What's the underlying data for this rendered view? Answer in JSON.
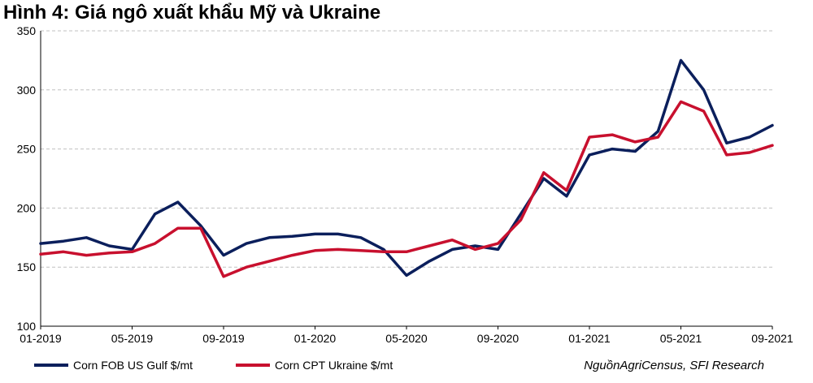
{
  "title": "Hình 4: Giá ngô xuất khẩu Mỹ và Ukraine",
  "source": "NguồnAgriCensus, SFI Research",
  "colors": {
    "us": "#0b1f5c",
    "ukraine": "#c8102e",
    "grid": "#c0c0c0"
  },
  "chart_data": {
    "type": "line",
    "title": "Hình 4: Giá ngô xuất khẩu Mỹ và Ukraine",
    "xlabel": "",
    "ylabel": "",
    "ylim": [
      100,
      350
    ],
    "yticks": [
      100,
      150,
      200,
      250,
      300,
      350
    ],
    "grid": "horizontal dashed",
    "legend_position": "bottom-left",
    "xticks": [
      "01-2019",
      "05-2019",
      "09-2019",
      "01-2020",
      "05-2020",
      "09-2020",
      "01-2021",
      "05-2021",
      "09-2021"
    ],
    "x": [
      "01-2019",
      "02-2019",
      "03-2019",
      "04-2019",
      "05-2019",
      "06-2019",
      "07-2019",
      "08-2019",
      "09-2019",
      "10-2019",
      "11-2019",
      "12-2019",
      "01-2020",
      "02-2020",
      "03-2020",
      "04-2020",
      "05-2020",
      "06-2020",
      "07-2020",
      "08-2020",
      "09-2020",
      "10-2020",
      "11-2020",
      "12-2020",
      "01-2021",
      "02-2021",
      "03-2021",
      "04-2021",
      "05-2021",
      "06-2021",
      "07-2021",
      "08-2021",
      "09-2021"
    ],
    "series": [
      {
        "name": "Corn FOB US Gulf $/mt",
        "color": "#0b1f5c",
        "values": [
          170,
          172,
          175,
          168,
          165,
          195,
          205,
          185,
          160,
          170,
          175,
          176,
          178,
          178,
          175,
          165,
          143,
          155,
          165,
          168,
          165,
          195,
          225,
          210,
          245,
          250,
          248,
          265,
          325,
          300,
          255,
          260,
          270
        ]
      },
      {
        "name": "Corn CPT Ukraine $/mt",
        "color": "#c8102e",
        "values": [
          161,
          163,
          160,
          162,
          163,
          170,
          183,
          183,
          142,
          150,
          155,
          160,
          164,
          165,
          164,
          163,
          163,
          168,
          173,
          165,
          170,
          190,
          230,
          215,
          260,
          262,
          256,
          260,
          290,
          282,
          245,
          247,
          253
        ]
      }
    ]
  }
}
